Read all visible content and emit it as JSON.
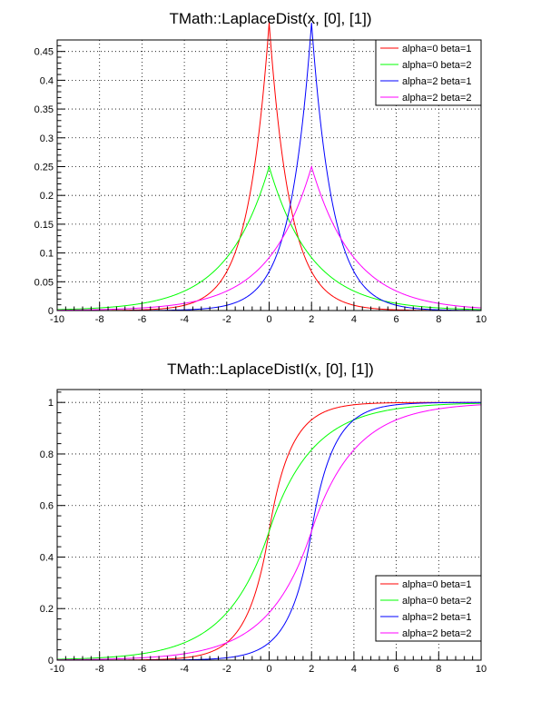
{
  "chart_data": [
    {
      "type": "line",
      "function": "laplace-pdf",
      "title": "TMath::LaplaceDist(x, [0], [1])",
      "xlim": [
        -10,
        10
      ],
      "ylim": [
        0,
        0.47
      ],
      "xticks": [
        "-10",
        "-8",
        "-6",
        "-4",
        "-2",
        "0",
        "2",
        "4",
        "6",
        "8",
        "10"
      ],
      "yticks": [
        {
          "v": 0,
          "label": "0"
        },
        {
          "v": 0.05,
          "label": "0.05"
        },
        {
          "v": 0.1,
          "label": "0.1"
        },
        {
          "v": 0.15,
          "label": "0.15"
        },
        {
          "v": 0.2,
          "label": "0.2"
        },
        {
          "v": 0.25,
          "label": "0.25"
        },
        {
          "v": 0.3,
          "label": "0.3"
        },
        {
          "v": 0.35,
          "label": "0.35"
        },
        {
          "v": 0.4,
          "label": "0.4"
        },
        {
          "v": 0.45,
          "label": "0.45"
        }
      ],
      "grid": true,
      "legend_position": "top-right",
      "series": [
        {
          "name": "alpha=0 beta=1",
          "alpha": 0,
          "beta": 1,
          "color": "#ff0000"
        },
        {
          "name": "alpha=0 beta=2",
          "alpha": 0,
          "beta": 2,
          "color": "#00ff00"
        },
        {
          "name": "alpha=2 beta=1",
          "alpha": 2,
          "beta": 1,
          "color": "#0000ff"
        },
        {
          "name": "alpha=2 beta=2",
          "alpha": 2,
          "beta": 2,
          "color": "#ff00ff"
        }
      ]
    },
    {
      "type": "line",
      "function": "laplace-cdf",
      "title": "TMath::LaplaceDistI(x, [0], [1])",
      "xlim": [
        -10,
        10
      ],
      "ylim": [
        0,
        1.05
      ],
      "xticks": [
        "-10",
        "-8",
        "-6",
        "-4",
        "-2",
        "0",
        "2",
        "4",
        "6",
        "8",
        "10"
      ],
      "yticks": [
        {
          "v": 0,
          "label": "0"
        },
        {
          "v": 0.2,
          "label": "0.2"
        },
        {
          "v": 0.4,
          "label": "0.4"
        },
        {
          "v": 0.6,
          "label": "0.6"
        },
        {
          "v": 0.8,
          "label": "0.8"
        },
        {
          "v": 1,
          "label": "1"
        }
      ],
      "grid": true,
      "legend_position": "bottom-right",
      "series": [
        {
          "name": "alpha=0 beta=1",
          "alpha": 0,
          "beta": 1,
          "color": "#ff0000"
        },
        {
          "name": "alpha=0 beta=2",
          "alpha": 0,
          "beta": 2,
          "color": "#00ff00"
        },
        {
          "name": "alpha=2 beta=1",
          "alpha": 2,
          "beta": 1,
          "color": "#0000ff"
        },
        {
          "name": "alpha=2 beta=2",
          "alpha": 2,
          "beta": 2,
          "color": "#ff00ff"
        }
      ]
    }
  ]
}
